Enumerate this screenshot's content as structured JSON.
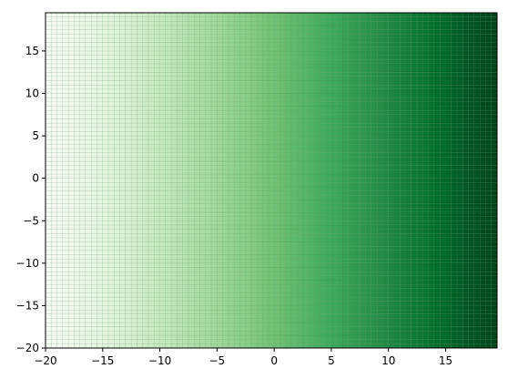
{
  "chart_data": {
    "type": "heatmap",
    "title": "",
    "xlabel": "",
    "ylabel": "",
    "colormap": "Greens",
    "colormap_stops": [
      "#f7fcf5",
      "#e5f5e0",
      "#c7e9c0",
      "#a1d99b",
      "#74c476",
      "#41ab5d",
      "#238b45",
      "#006d2c",
      "#00441b"
    ],
    "mesh_line_color": "#3a7d44",
    "value_rule": "color depends on x only; increases left to right",
    "x_range": [
      -20,
      19.5
    ],
    "y_range": [
      -20,
      19.5
    ],
    "cell_size": 0.5,
    "xlim": [
      -20,
      19.5
    ],
    "ylim": [
      -20,
      19.5
    ],
    "x_ticks": [
      -20,
      -15,
      -10,
      -5,
      0,
      5,
      10,
      15
    ],
    "y_ticks": [
      -20,
      -15,
      -10,
      -5,
      0,
      5,
      10,
      15
    ],
    "x_tick_labels": [
      "−20",
      "−15",
      "−10",
      "−5",
      "0",
      "5",
      "10",
      "15"
    ],
    "y_tick_labels": [
      "−20",
      "−15",
      "−10",
      "−5",
      "0",
      "5",
      "10",
      "15"
    ],
    "grid": false,
    "legend": "none"
  }
}
